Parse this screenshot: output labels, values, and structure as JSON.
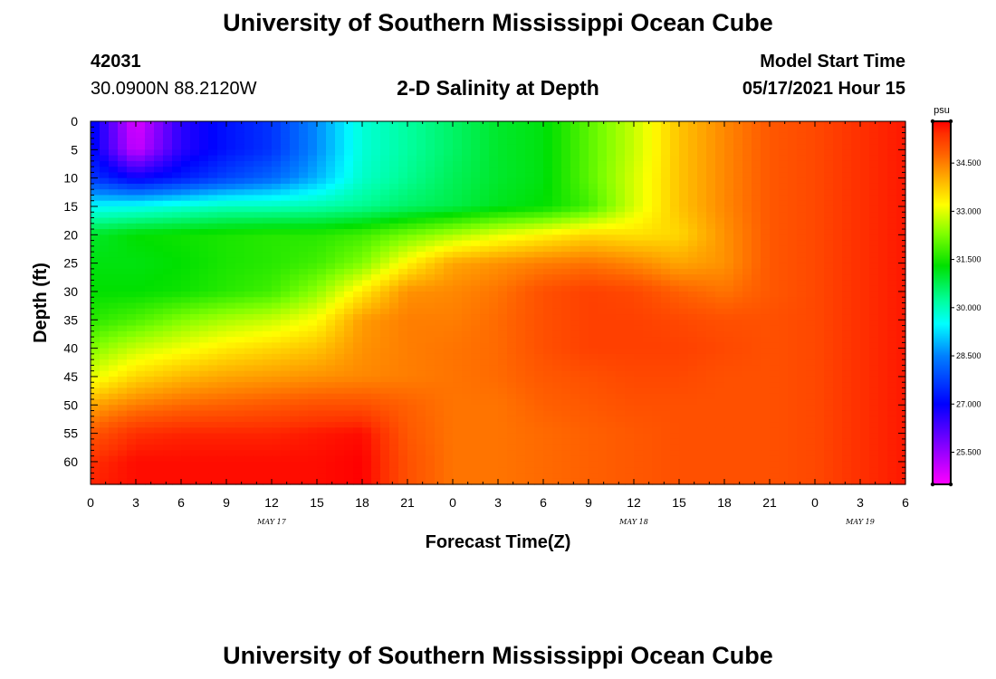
{
  "title_top": "University of Southern Mississippi Ocean Cube",
  "title_bottom": "University of Southern Mississippi Ocean Cube",
  "station": {
    "id": "42031",
    "location": "30.0900N  88.2120W"
  },
  "model_start": {
    "label": "Model Start Time",
    "value": "05/17/2021 Hour 15"
  },
  "chart_data": {
    "type": "heatmap",
    "title": "2-D Salinity at Depth",
    "xlabel": "Forecast Time(Z)",
    "ylabel": "Depth (ft)",
    "x_ticks": [
      "0",
      "3",
      "6",
      "9",
      "12",
      "15",
      "18",
      "21",
      "0",
      "3",
      "6",
      "9",
      "12",
      "15",
      "18",
      "21",
      "0",
      "3",
      "6"
    ],
    "x_range_hours": [
      0,
      54
    ],
    "date_labels": [
      {
        "label": "MAY 17",
        "hour": 12
      },
      {
        "label": "MAY 18",
        "hour": 36
      },
      {
        "label": "MAY 19",
        "hour": 51
      }
    ],
    "y_ticks": [
      0,
      5,
      10,
      15,
      20,
      25,
      30,
      35,
      40,
      45,
      50,
      55,
      60
    ],
    "y_range_ft": [
      0,
      64
    ],
    "y_inverted": true,
    "colorbar": {
      "unit": "psu",
      "range": [
        24.5,
        35.8
      ],
      "labels": [
        "34.500",
        "33.000",
        "31.500",
        "30.000",
        "28.500",
        "27.000",
        "25.500"
      ],
      "label_values": [
        34.5,
        33.0,
        31.5,
        30.0,
        28.5,
        27.0,
        25.5
      ],
      "stops": [
        {
          "value": 24.5,
          "color": "#ff00ff"
        },
        {
          "value": 26.0,
          "color": "#6600ff"
        },
        {
          "value": 27.0,
          "color": "#0000ff"
        },
        {
          "value": 28.5,
          "color": "#0080ff"
        },
        {
          "value": 29.5,
          "color": "#00ffff"
        },
        {
          "value": 30.2,
          "color": "#00ffa0"
        },
        {
          "value": 31.3,
          "color": "#00e000"
        },
        {
          "value": 32.3,
          "color": "#80ff00"
        },
        {
          "value": 33.2,
          "color": "#ffff00"
        },
        {
          "value": 34.0,
          "color": "#ffb000"
        },
        {
          "value": 34.8,
          "color": "#ff6000"
        },
        {
          "value": 35.4,
          "color": "#ff3000"
        },
        {
          "value": 35.8,
          "color": "#ff0000"
        }
      ]
    },
    "grid_x_hours": [
      0,
      3,
      6,
      9,
      12,
      15,
      18,
      21,
      24,
      27,
      30,
      33,
      36,
      39,
      42,
      45,
      48,
      51,
      54
    ],
    "grid_y_ft": [
      0,
      5,
      10,
      15,
      20,
      25,
      30,
      35,
      40,
      45,
      50,
      55,
      60,
      64
    ],
    "salinity_grid": [
      [
        27.2,
        24.8,
        26.6,
        27.2,
        27.6,
        28.6,
        29.8,
        30.2,
        30.6,
        31.0,
        31.2,
        32.0,
        32.8,
        33.8,
        34.4,
        34.9,
        35.1,
        35.4,
        35.6
      ],
      [
        27.2,
        25.0,
        26.6,
        27.2,
        27.6,
        28.6,
        29.8,
        30.2,
        30.6,
        31.0,
        31.2,
        32.0,
        32.8,
        33.8,
        34.4,
        34.9,
        35.1,
        35.4,
        35.6
      ],
      [
        27.6,
        26.9,
        27.3,
        27.8,
        28.2,
        28.9,
        29.9,
        30.3,
        30.7,
        31.0,
        31.2,
        32.0,
        32.9,
        33.8,
        34.4,
        34.9,
        35.1,
        35.4,
        35.6
      ],
      [
        29.5,
        29.6,
        29.8,
        30.0,
        30.0,
        30.1,
        30.3,
        30.6,
        30.8,
        31.1,
        31.3,
        31.8,
        32.9,
        33.8,
        34.4,
        34.9,
        35.1,
        35.4,
        35.6
      ],
      [
        31.0,
        31.3,
        31.4,
        31.5,
        31.6,
        31.6,
        31.8,
        32.2,
        32.6,
        33.0,
        33.3,
        33.6,
        33.5,
        33.6,
        34.3,
        34.9,
        35.1,
        35.4,
        35.6
      ],
      [
        31.2,
        31.2,
        31.3,
        31.5,
        31.6,
        31.8,
        32.3,
        33.3,
        34.1,
        34.3,
        34.5,
        34.6,
        34.4,
        34.1,
        34.3,
        34.9,
        35.1,
        35.4,
        35.6
      ],
      [
        31.3,
        31.3,
        31.4,
        31.6,
        31.8,
        32.4,
        33.4,
        34.3,
        34.4,
        34.6,
        35.0,
        35.2,
        35.1,
        34.8,
        34.6,
        34.9,
        35.1,
        35.4,
        35.6
      ],
      [
        31.6,
        31.9,
        32.3,
        32.6,
        32.8,
        33.2,
        34.2,
        34.5,
        34.5,
        34.7,
        35.0,
        35.2,
        35.2,
        35.1,
        35.0,
        35.0,
        35.1,
        35.4,
        35.6
      ],
      [
        32.3,
        32.8,
        33.1,
        33.4,
        33.6,
        33.8,
        34.3,
        34.5,
        34.6,
        34.7,
        35.0,
        35.2,
        35.2,
        35.2,
        35.1,
        35.0,
        35.1,
        35.4,
        35.6
      ],
      [
        33.0,
        33.6,
        33.9,
        34.1,
        34.2,
        34.3,
        34.4,
        34.5,
        34.6,
        34.7,
        34.9,
        35.0,
        35.1,
        35.1,
        35.0,
        35.0,
        35.1,
        35.4,
        35.6
      ],
      [
        34.1,
        34.5,
        34.7,
        34.8,
        34.9,
        35.0,
        35.0,
        34.8,
        34.6,
        34.6,
        34.8,
        34.9,
        35.0,
        35.0,
        35.0,
        35.0,
        35.1,
        35.4,
        35.6
      ],
      [
        34.9,
        35.4,
        35.5,
        35.5,
        35.5,
        35.6,
        35.7,
        34.9,
        34.6,
        34.6,
        34.7,
        34.8,
        34.9,
        35.0,
        35.0,
        35.0,
        35.1,
        35.4,
        35.6
      ],
      [
        35.4,
        35.7,
        35.7,
        35.7,
        35.7,
        35.7,
        35.8,
        35.0,
        34.6,
        34.6,
        34.7,
        34.8,
        34.9,
        35.0,
        35.0,
        35.0,
        35.1,
        35.4,
        35.6
      ],
      [
        35.5,
        35.7,
        35.7,
        35.7,
        35.7,
        35.7,
        35.8,
        35.0,
        34.6,
        34.6,
        34.7,
        34.8,
        34.9,
        35.0,
        35.0,
        35.0,
        35.1,
        35.4,
        35.6
      ]
    ]
  }
}
